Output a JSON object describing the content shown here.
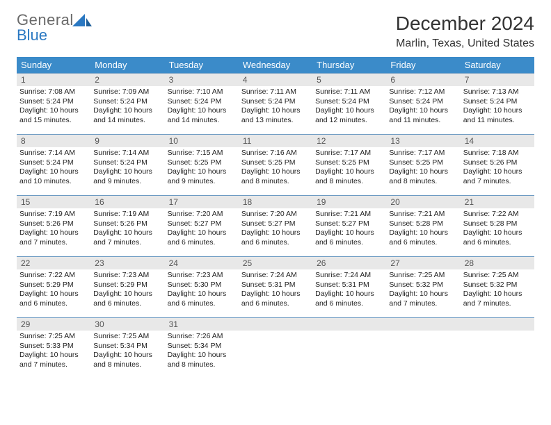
{
  "logo": {
    "line1": "General",
    "line2_prefix": "",
    "line2_blue": "Blue"
  },
  "title": "December 2024",
  "location": "Marlin, Texas, United States",
  "header_color": "#3b8bc9",
  "daynum_bg": "#e8e8e8",
  "border_color": "#6d9bc3",
  "days_of_week": [
    "Sunday",
    "Monday",
    "Tuesday",
    "Wednesday",
    "Thursday",
    "Friday",
    "Saturday"
  ],
  "weeks": [
    [
      {
        "n": "1",
        "sr": "7:08 AM",
        "ss": "5:24 PM",
        "dh": "10",
        "dm": "15"
      },
      {
        "n": "2",
        "sr": "7:09 AM",
        "ss": "5:24 PM",
        "dh": "10",
        "dm": "14"
      },
      {
        "n": "3",
        "sr": "7:10 AM",
        "ss": "5:24 PM",
        "dh": "10",
        "dm": "14"
      },
      {
        "n": "4",
        "sr": "7:11 AM",
        "ss": "5:24 PM",
        "dh": "10",
        "dm": "13"
      },
      {
        "n": "5",
        "sr": "7:11 AM",
        "ss": "5:24 PM",
        "dh": "10",
        "dm": "12"
      },
      {
        "n": "6",
        "sr": "7:12 AM",
        "ss": "5:24 PM",
        "dh": "10",
        "dm": "11"
      },
      {
        "n": "7",
        "sr": "7:13 AM",
        "ss": "5:24 PM",
        "dh": "10",
        "dm": "11"
      }
    ],
    [
      {
        "n": "8",
        "sr": "7:14 AM",
        "ss": "5:24 PM",
        "dh": "10",
        "dm": "10"
      },
      {
        "n": "9",
        "sr": "7:14 AM",
        "ss": "5:24 PM",
        "dh": "10",
        "dm": "9"
      },
      {
        "n": "10",
        "sr": "7:15 AM",
        "ss": "5:25 PM",
        "dh": "10",
        "dm": "9"
      },
      {
        "n": "11",
        "sr": "7:16 AM",
        "ss": "5:25 PM",
        "dh": "10",
        "dm": "8"
      },
      {
        "n": "12",
        "sr": "7:17 AM",
        "ss": "5:25 PM",
        "dh": "10",
        "dm": "8"
      },
      {
        "n": "13",
        "sr": "7:17 AM",
        "ss": "5:25 PM",
        "dh": "10",
        "dm": "8"
      },
      {
        "n": "14",
        "sr": "7:18 AM",
        "ss": "5:26 PM",
        "dh": "10",
        "dm": "7"
      }
    ],
    [
      {
        "n": "15",
        "sr": "7:19 AM",
        "ss": "5:26 PM",
        "dh": "10",
        "dm": "7"
      },
      {
        "n": "16",
        "sr": "7:19 AM",
        "ss": "5:26 PM",
        "dh": "10",
        "dm": "7"
      },
      {
        "n": "17",
        "sr": "7:20 AM",
        "ss": "5:27 PM",
        "dh": "10",
        "dm": "6"
      },
      {
        "n": "18",
        "sr": "7:20 AM",
        "ss": "5:27 PM",
        "dh": "10",
        "dm": "6"
      },
      {
        "n": "19",
        "sr": "7:21 AM",
        "ss": "5:27 PM",
        "dh": "10",
        "dm": "6"
      },
      {
        "n": "20",
        "sr": "7:21 AM",
        "ss": "5:28 PM",
        "dh": "10",
        "dm": "6"
      },
      {
        "n": "21",
        "sr": "7:22 AM",
        "ss": "5:28 PM",
        "dh": "10",
        "dm": "6"
      }
    ],
    [
      {
        "n": "22",
        "sr": "7:22 AM",
        "ss": "5:29 PM",
        "dh": "10",
        "dm": "6"
      },
      {
        "n": "23",
        "sr": "7:23 AM",
        "ss": "5:29 PM",
        "dh": "10",
        "dm": "6"
      },
      {
        "n": "24",
        "sr": "7:23 AM",
        "ss": "5:30 PM",
        "dh": "10",
        "dm": "6"
      },
      {
        "n": "25",
        "sr": "7:24 AM",
        "ss": "5:31 PM",
        "dh": "10",
        "dm": "6"
      },
      {
        "n": "26",
        "sr": "7:24 AM",
        "ss": "5:31 PM",
        "dh": "10",
        "dm": "6"
      },
      {
        "n": "27",
        "sr": "7:25 AM",
        "ss": "5:32 PM",
        "dh": "10",
        "dm": "7"
      },
      {
        "n": "28",
        "sr": "7:25 AM",
        "ss": "5:32 PM",
        "dh": "10",
        "dm": "7"
      }
    ],
    [
      {
        "n": "29",
        "sr": "7:25 AM",
        "ss": "5:33 PM",
        "dh": "10",
        "dm": "7"
      },
      {
        "n": "30",
        "sr": "7:25 AM",
        "ss": "5:34 PM",
        "dh": "10",
        "dm": "8"
      },
      {
        "n": "31",
        "sr": "7:26 AM",
        "ss": "5:34 PM",
        "dh": "10",
        "dm": "8"
      },
      null,
      null,
      null,
      null
    ]
  ],
  "labels": {
    "sunrise": "Sunrise:",
    "sunset": "Sunset:",
    "daylight_prefix": "Daylight:",
    "hours_word": "hours",
    "and_word": "and",
    "minutes_word": "minutes."
  }
}
